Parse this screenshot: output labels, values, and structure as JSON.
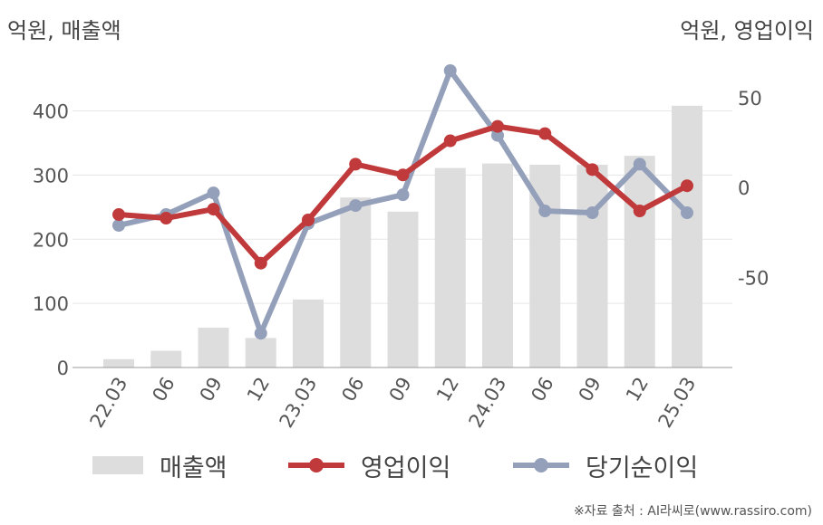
{
  "units": {
    "left": "억원, 매출액",
    "right": "억원, 영업이익"
  },
  "legend": {
    "revenue": "매출액",
    "operating": "영업이익",
    "net": "당기순이익"
  },
  "source": "※자료 출처 : AI라씨로(www.rassiro.com)",
  "colors": {
    "bar": "#dddddd",
    "operating": "#c0393b",
    "net": "#94a0ba",
    "grid": "#e6e6e6",
    "axis": "#999999"
  },
  "chart_data": {
    "type": "bar+line",
    "categories": [
      "22.03",
      "06",
      "09",
      "12",
      "23.03",
      "06",
      "09",
      "12",
      "24.03",
      "06",
      "09",
      "12",
      "25.03"
    ],
    "left_axis": {
      "ylim": [
        0,
        460
      ],
      "ticks": [
        0,
        100,
        200,
        300,
        400
      ]
    },
    "right_axis": {
      "ylim": [
        -100,
        64
      ],
      "ticks": [
        -50,
        0,
        50
      ]
    },
    "series": [
      {
        "name": "매출액",
        "type": "bar",
        "axis": "left",
        "values": [
          13,
          26,
          62,
          46,
          106,
          265,
          243,
          311,
          318,
          316,
          316,
          330,
          408
        ]
      },
      {
        "name": "영업이익",
        "type": "line",
        "axis": "right",
        "values": [
          -15,
          -17,
          -12,
          -42,
          -18,
          13,
          7,
          26,
          34,
          30,
          10,
          -13,
          1
        ]
      },
      {
        "name": "당기순이익",
        "type": "line",
        "axis": "right",
        "values": [
          -21,
          -15,
          -3,
          -81,
          -20,
          -10,
          -4,
          65,
          29,
          -13,
          -14,
          13,
          -14
        ]
      }
    ]
  }
}
